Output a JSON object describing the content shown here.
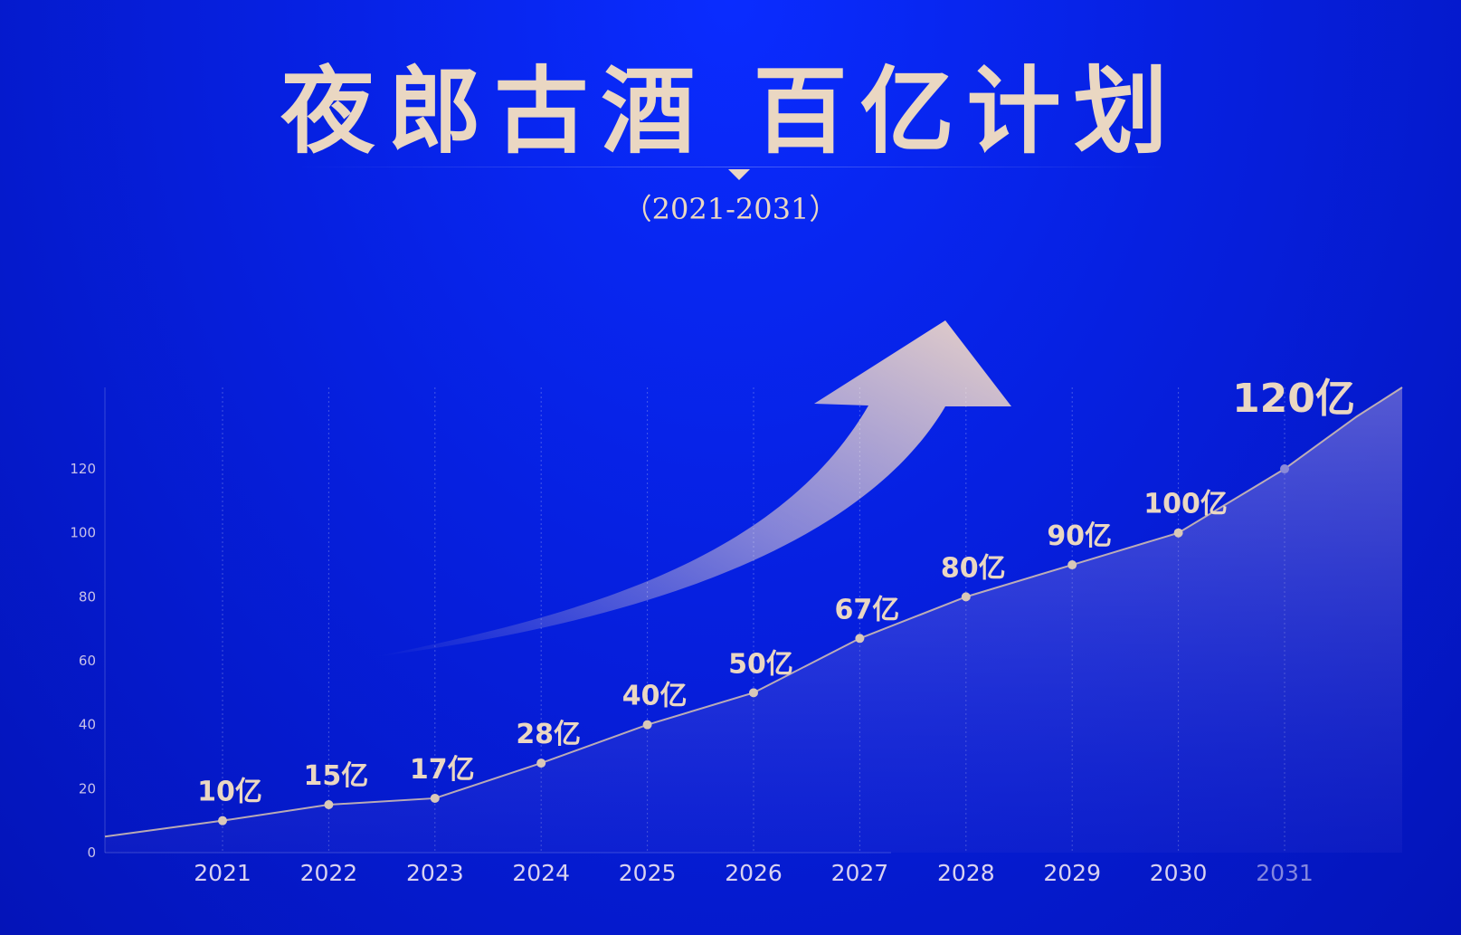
{
  "title": "夜郎古酒 百亿计划",
  "subtitle": "（2021-2031）",
  "colors": {
    "background": "#0620e0",
    "accent": "#ead7c2",
    "line": "#d8c3b0"
  },
  "chart_data": {
    "type": "line",
    "title": "夜郎古酒 百亿计划",
    "subtitle": "（2021-2031）",
    "categories": [
      "2021",
      "2022",
      "2023",
      "2024",
      "2025",
      "2026",
      "2027",
      "2028",
      "2029",
      "2030",
      "2031"
    ],
    "values": [
      10,
      15,
      17,
      28,
      40,
      50,
      67,
      80,
      90,
      100,
      120
    ],
    "data_labels": [
      "10亿",
      "15亿",
      "17亿",
      "28亿",
      "40亿",
      "50亿",
      "67亿",
      "80亿",
      "90亿",
      "100亿",
      "120亿"
    ],
    "unit": "亿",
    "yticks": [
      0,
      20,
      40,
      60,
      80,
      100,
      120
    ],
    "ylim": [
      0,
      140
    ],
    "xlabel": "",
    "ylabel": "",
    "grid": "vertical dashed",
    "legend": "none",
    "area_fill": true,
    "decoration": "upward-arrow"
  }
}
